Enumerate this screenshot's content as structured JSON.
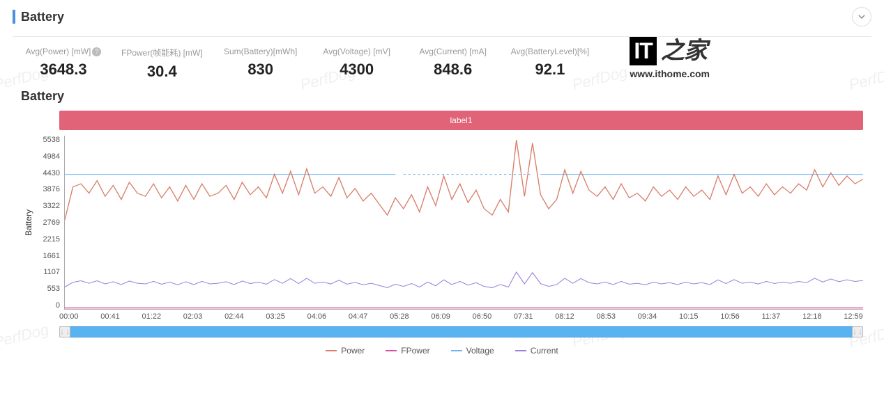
{
  "header": {
    "title": "Battery"
  },
  "metrics": [
    {
      "label": "Avg(Power) [mW]",
      "value": "3648.3",
      "help": true
    },
    {
      "label": "FPower(帧能耗) [mW]",
      "value": "30.4"
    },
    {
      "label": "Sum(Battery)[mWh]",
      "value": "830"
    },
    {
      "label": "Avg(Voltage) [mV]",
      "value": "4300"
    },
    {
      "label": "Avg(Current) [mA]",
      "value": "848.6"
    },
    {
      "label": "Avg(BatteryLevel)[%]",
      "value": "92.1"
    }
  ],
  "brand": {
    "it": "IT",
    "cn": "之家",
    "url": "www.ithome.com"
  },
  "watermarks": [
    "PerfDog",
    "PerfDog",
    "PerfDog",
    "PerfDog",
    "PerfDog",
    "PerfDog",
    "PerfDog"
  ],
  "chart": {
    "title": "Battery",
    "label_bar_text": "label1",
    "label_bar_color": "#e06377",
    "y_axis_label": "Battery",
    "ylim": [
      0,
      5538
    ],
    "yticks": [
      "5538",
      "4984",
      "4430",
      "3876",
      "3322",
      "2769",
      "2215",
      "1661",
      "1107",
      "553",
      "0"
    ],
    "xticks": [
      "00:00",
      "00:41",
      "01:22",
      "02:03",
      "02:44",
      "03:25",
      "04:06",
      "04:47",
      "05:28",
      "06:09",
      "06:50",
      "07:31",
      "08:12",
      "08:53",
      "09:34",
      "10:15",
      "10:56",
      "11:37",
      "12:18",
      "12:59"
    ],
    "grid_color": "#eeeeee",
    "background_color": "#ffffff",
    "series": {
      "power": {
        "name": "Power",
        "color": "#d97e6a",
        "width": 1.2,
        "values": [
          2850,
          3900,
          4000,
          3700,
          4100,
          3600,
          3950,
          3500,
          4050,
          3700,
          3600,
          4000,
          3550,
          3900,
          3450,
          3950,
          3500,
          4000,
          3600,
          3700,
          3950,
          3500,
          4050,
          3650,
          3900,
          3550,
          4300,
          3700,
          4400,
          3650,
          4480,
          3700,
          3900,
          3600,
          4200,
          3550,
          3850,
          3450,
          3700,
          3350,
          3000,
          3550,
          3200,
          3650,
          3100,
          3900,
          3300,
          4250,
          3500,
          4000,
          3400,
          3800,
          3200,
          3000,
          3500,
          3100,
          5400,
          3600,
          5300,
          3650,
          3200,
          3500,
          4450,
          3700,
          4400,
          3800,
          3600,
          3900,
          3500,
          4000,
          3550,
          3700,
          3450,
          3900,
          3600,
          3800,
          3500,
          3900,
          3600,
          3800,
          3500,
          4250,
          3650,
          4300,
          3700,
          3900,
          3600,
          4000,
          3650,
          3900,
          3700,
          4000,
          3800,
          4450,
          3900,
          4350,
          3950,
          4250,
          4000,
          4150
        ]
      },
      "voltage": {
        "name": "Voltage",
        "color": "#6cb4ee",
        "width": 1,
        "values": [
          4300,
          4300,
          4300,
          4300,
          4300,
          4300,
          4300,
          4300,
          4300,
          4300,
          4300,
          4300,
          4300,
          4300,
          4300,
          4300,
          4300,
          4300,
          4300,
          4300,
          4300,
          4300,
          4300,
          4300,
          4300,
          4300,
          4300,
          4300,
          4300,
          4300,
          4300,
          4300,
          4300,
          4300,
          4300,
          4300,
          4300,
          4300,
          4300,
          4300,
          4300,
          4300,
          4300,
          4300,
          4300,
          4300,
          4300,
          4300,
          4300,
          4300,
          4300,
          4300,
          4300,
          4300,
          4300,
          4300,
          4300,
          4300,
          4300,
          4300,
          4300,
          4300,
          4300,
          4300,
          4300,
          4300,
          4300,
          4300,
          4300,
          4300,
          4300,
          4300,
          4300,
          4300,
          4300,
          4300,
          4300,
          4300,
          4300,
          4300,
          4300,
          4300,
          4300,
          4300,
          4300,
          4300,
          4300,
          4300,
          4300,
          4300,
          4300,
          4300,
          4300,
          4300,
          4300,
          4300,
          4300,
          4300,
          4300,
          4300
        ]
      },
      "voltage_dashed_range": [
        42,
        58
      ],
      "current": {
        "name": "Current",
        "color": "#9b7ede",
        "width": 1,
        "values": [
          700,
          850,
          900,
          820,
          900,
          800,
          870,
          780,
          890,
          820,
          800,
          880,
          790,
          860,
          770,
          870,
          780,
          880,
          800,
          820,
          870,
          780,
          890,
          810,
          860,
          790,
          940,
          820,
          970,
          810,
          980,
          820,
          860,
          800,
          920,
          790,
          850,
          770,
          820,
          750,
          680,
          790,
          720,
          810,
          700,
          860,
          740,
          930,
          780,
          880,
          760,
          840,
          720,
          680,
          780,
          700,
          1180,
          800,
          1160,
          810,
          720,
          780,
          980,
          820,
          970,
          840,
          800,
          860,
          780,
          880,
          790,
          820,
          770,
          860,
          800,
          840,
          780,
          860,
          800,
          840,
          780,
          930,
          810,
          940,
          820,
          860,
          800,
          880,
          810,
          860,
          820,
          880,
          840,
          980,
          860,
          960,
          870,
          930,
          880,
          910
        ]
      },
      "fpower": {
        "name": "FPower",
        "color": "#d850a6",
        "width": 1.4,
        "values": [
          30,
          30,
          30,
          30,
          30,
          30,
          30,
          30,
          30,
          30,
          30,
          30,
          30,
          30,
          30,
          30,
          30,
          30,
          30,
          30,
          30,
          30,
          30,
          30,
          30,
          30,
          30,
          30,
          30,
          30,
          30,
          30,
          30,
          30,
          30,
          30,
          30,
          30,
          30,
          30,
          30,
          30,
          30,
          30,
          30,
          30,
          30,
          30,
          30,
          30,
          30,
          30,
          30,
          30,
          30,
          30,
          30,
          30,
          30,
          30,
          30,
          30,
          30,
          30,
          30,
          30,
          30,
          30,
          30,
          30,
          30,
          30,
          30,
          30,
          30,
          30,
          30,
          30,
          30,
          30,
          30,
          30,
          30,
          30,
          30,
          30,
          30,
          30,
          30,
          30,
          30,
          30,
          30,
          30,
          30,
          30,
          30,
          30,
          30,
          30
        ]
      }
    },
    "legend": [
      {
        "name": "Power",
        "color": "#d97e6a"
      },
      {
        "name": "FPower",
        "color": "#d850a6"
      },
      {
        "name": "Voltage",
        "color": "#6cb4ee"
      },
      {
        "name": "Current",
        "color": "#9b7ede"
      }
    ],
    "range_slider_color": "#59b3f0"
  }
}
